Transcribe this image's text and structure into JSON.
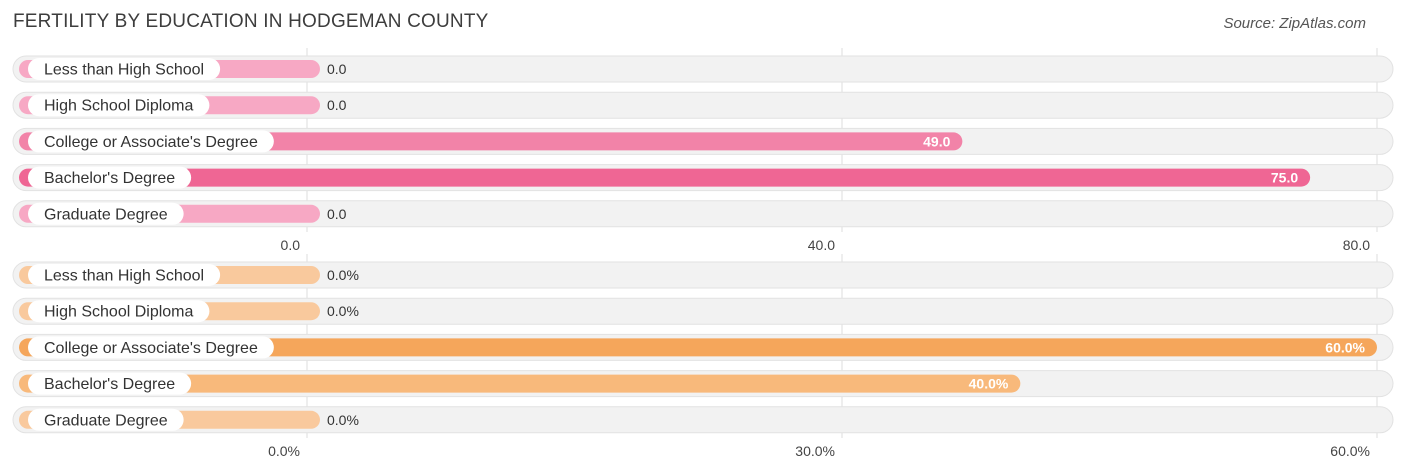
{
  "title": "FERTILITY BY EDUCATION IN HODGEMAN COUNTY",
  "source": "Source: ZipAtlas.com",
  "chart_data": [
    {
      "type": "bar",
      "orientation": "horizontal",
      "categories": [
        "Less than High School",
        "High School Diploma",
        "College or Associate's Degree",
        "Bachelor's Degree",
        "Graduate Degree"
      ],
      "values": [
        0.0,
        0.0,
        49.0,
        75.0,
        0.0
      ],
      "value_labels": [
        "0.0",
        "0.0",
        "49.0",
        "75.0",
        "0.0"
      ],
      "xlim": [
        0,
        80
      ],
      "ticks": [
        0,
        40,
        80
      ],
      "tick_labels": [
        "0.0",
        "40.0",
        "80.0"
      ],
      "colors": {
        "light": "#f7a8c4",
        "mid": "#f283a8",
        "strong": "#ef6694"
      },
      "grid": true
    },
    {
      "type": "bar",
      "orientation": "horizontal",
      "categories": [
        "Less than High School",
        "High School Diploma",
        "College or Associate's Degree",
        "Bachelor's Degree",
        "Graduate Degree"
      ],
      "values": [
        0.0,
        0.0,
        60.0,
        40.0,
        0.0
      ],
      "value_labels": [
        "0.0%",
        "0.0%",
        "60.0%",
        "40.0%",
        "0.0%"
      ],
      "xlim": [
        0,
        60
      ],
      "ticks": [
        0,
        30,
        60
      ],
      "tick_labels": [
        "0.0%",
        "30.0%",
        "60.0%"
      ],
      "colors": {
        "light": "#f9c99d",
        "mid": "#f8b97b",
        "strong": "#f5a65b"
      },
      "grid": true
    }
  ]
}
